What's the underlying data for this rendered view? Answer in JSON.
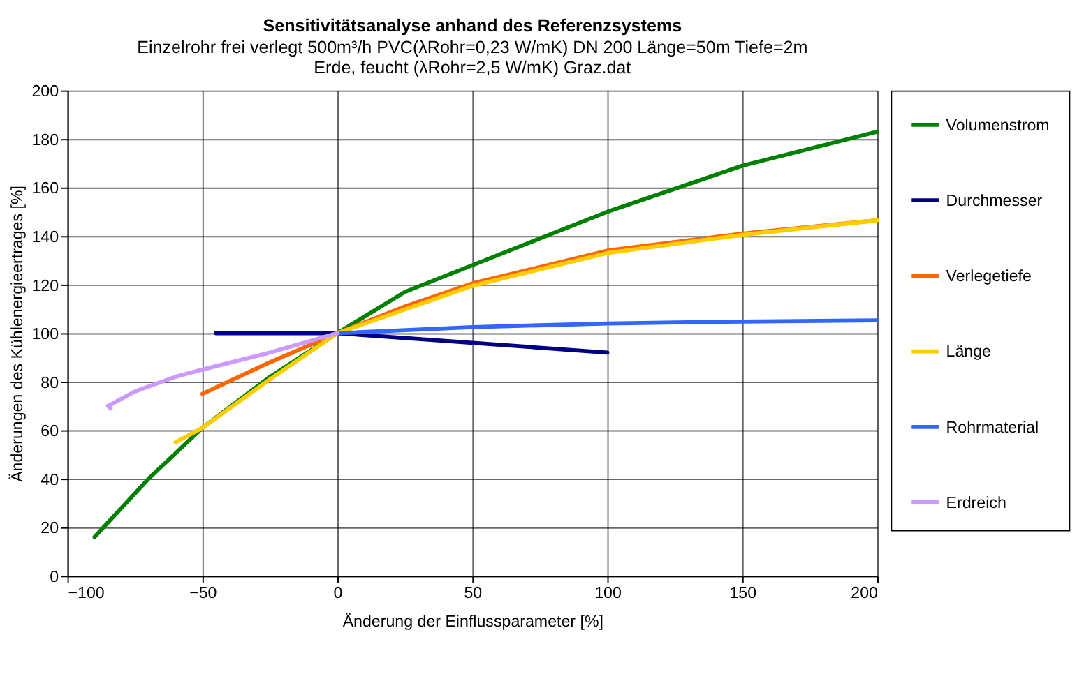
{
  "chart_data": {
    "type": "line",
    "title": "Sensitivitätsanalyse anhand des Referenzsystems",
    "subtitle": [
      "Einzelrohr  frei verlegt  500m³/h  PVC(λRohr=0,23 W/mK)  DN 200  Länge=50m  Tiefe=2m",
      "Erde, feucht (λRohr=2,5 W/mK)  Graz.dat"
    ],
    "xlabel": "Änderung der Einflussparameter [%]",
    "ylabel": "Änderungen des Kühlenergieertrages [%]",
    "xlim": [
      -100,
      200
    ],
    "xticks": [
      -100,
      -50,
      0,
      50,
      100,
      150,
      200
    ],
    "ylim": [
      0,
      200
    ],
    "yticks": [
      0,
      20,
      40,
      60,
      80,
      100,
      120,
      140,
      160,
      180,
      200
    ],
    "grid": true,
    "legend": "right",
    "line_style": "solid",
    "marker": "none",
    "series": [
      {
        "name": "Volumenstrom",
        "color": "#008000",
        "x": [
          -90,
          -80,
          -70,
          -50,
          -25,
          0,
          25,
          50,
          100,
          150,
          200
        ],
        "values": [
          16,
          28,
          40,
          61,
          82,
          100,
          117,
          128,
          150,
          169,
          183
        ]
      },
      {
        "name": "Durchmesser",
        "color": "#000080",
        "x": [
          -45,
          0,
          50,
          100
        ],
        "values": [
          100,
          100,
          96,
          92
        ]
      },
      {
        "name": "Verlegetiefe",
        "color": "#ff6600",
        "x": [
          -50,
          -25,
          0,
          25,
          50,
          100,
          150,
          200
        ],
        "values": [
          75,
          88,
          100,
          111,
          120.5,
          134,
          141,
          146.5
        ]
      },
      {
        "name": "Länge",
        "color": "#ffcc00",
        "x": [
          -60,
          -50,
          -25,
          0,
          50,
          100,
          150,
          200
        ],
        "values": [
          55,
          61,
          81,
          100,
          119.5,
          133,
          140.5,
          146.5
        ]
      },
      {
        "name": "Rohrmaterial",
        "color": "#3366ff",
        "x": [
          0,
          50,
          100,
          150,
          200
        ],
        "values": [
          100,
          102.5,
          104,
          104.8,
          105.3
        ]
      },
      {
        "name": "Erdreich",
        "color": "#cc99ff",
        "x": [
          -84,
          -85,
          -75,
          -60,
          -50,
          -25,
          0
        ],
        "values": [
          69,
          70,
          76,
          82,
          85,
          92,
          100
        ]
      }
    ]
  }
}
